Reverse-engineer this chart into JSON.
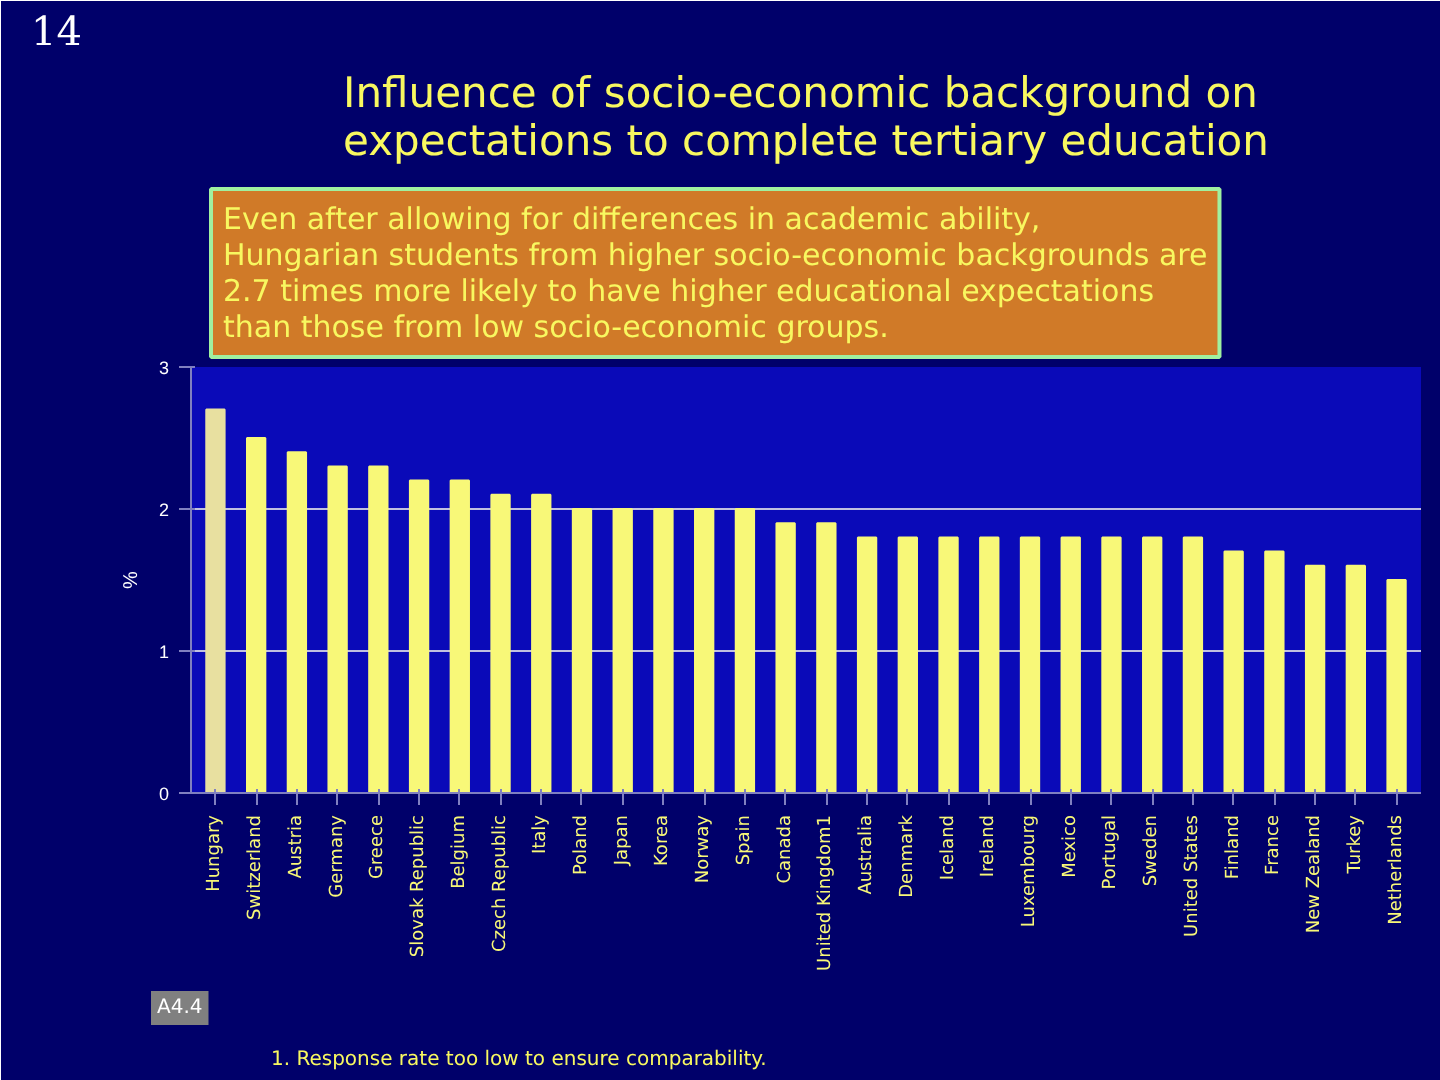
{
  "chart_data": {
    "type": "bar",
    "title": "Influence of socio-economic background on expectations to complete tertiary education",
    "ylabel": "%",
    "categories": [
      "Hungary",
      "Switzerland",
      "Austria",
      "Germany",
      "Greece",
      "Slovak Republic",
      "Belgium",
      "Czech Republic",
      "Italy",
      "Poland",
      "Japan",
      "Korea",
      "Norway",
      "Spain",
      "Canada",
      "United Kingdom1",
      "Australia",
      "Denmark",
      "Iceland",
      "Ireland",
      "Luxembourg",
      "Mexico",
      "Portugal",
      "Sweden",
      "United States",
      "Finland",
      "France",
      "New Zealand",
      "Turkey",
      "Netherlands"
    ],
    "values": [
      2.7,
      2.5,
      2.4,
      2.3,
      2.3,
      2.2,
      2.2,
      2.1,
      2.1,
      2.0,
      2.0,
      2.0,
      2.0,
      2.0,
      1.9,
      1.9,
      1.8,
      1.8,
      1.8,
      1.8,
      1.8,
      1.8,
      1.8,
      1.8,
      1.8,
      1.7,
      1.7,
      1.6,
      1.6,
      1.5
    ],
    "colors": [
      "#e8e0a0",
      "#f8f878",
      "#f8f878",
      "#f8f878",
      "#f8f878",
      "#f8f878",
      "#f8f878",
      "#f8f878",
      "#f8f878",
      "#f8f878",
      "#f8f878",
      "#f8f878",
      "#f8f878",
      "#f8f878",
      "#f8f878",
      "#f8f878",
      "#f8f878",
      "#f8f878",
      "#f8f878",
      "#f8f878",
      "#f8f878",
      "#f8f878",
      "#f8f878",
      "#f8f878",
      "#f8f878",
      "#f8f878",
      "#f8f878",
      "#f8f878",
      "#f8f878",
      "#f8f878"
    ],
    "ylim": [
      0,
      3
    ],
    "yticks": [
      0,
      1,
      2,
      3
    ],
    "grid": "y",
    "annotations": [
      "Even after allowing for differences in academic ability, Hungarian students from higher socio-economic backgrounds are 2.7 times more likely to have higher educational expectations than those from low socio-economic groups.",
      "1. Response rate too low to ensure comparability.",
      "A4.4",
      "14"
    ]
  }
}
